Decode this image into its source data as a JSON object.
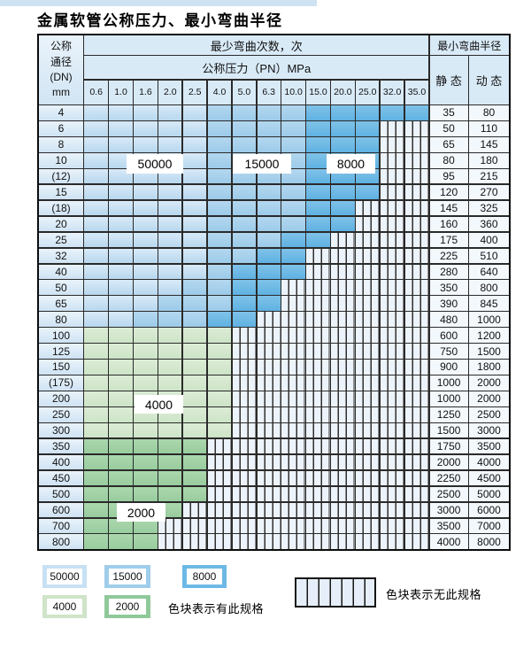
{
  "title": "金属软管公称压力、最小弯曲半径",
  "table": {
    "corner_lines": [
      "公称",
      "通径",
      "(DN)",
      "mm"
    ],
    "bend_cycles_header": "最少弯曲次数，次",
    "pressure_header": "公称压力（PN）MPa",
    "radius_header": "最小弯曲半径",
    "static_header": "静 态",
    "dynamic_header": "动 态",
    "pressures": [
      "0.6",
      "1.0",
      "1.6",
      "2.0",
      "2.5",
      "4.0",
      "5.0",
      "6.3",
      "10.0",
      "15.0",
      "20.0",
      "25.0",
      "32.0",
      "35.0"
    ],
    "band_colors": {
      "b1": {
        "label": "50000",
        "hex": "#b8d7ee"
      },
      "b2": {
        "label": "15000",
        "hex": "#9ccbe9"
      },
      "b3": {
        "label": "8000",
        "hex": "#5fb2e2"
      },
      "g1": {
        "label": "4000",
        "hex": "#cde4c7"
      },
      "g2": {
        "label": "2000",
        "hex": "#98cc9e"
      }
    },
    "rows": [
      {
        "dn": "4",
        "static": "35",
        "dynamic": "80",
        "spec": [
          [
            "b1",
            4
          ],
          [
            "b2",
            8
          ],
          [
            "b3",
            13
          ]
        ]
      },
      {
        "dn": "6",
        "static": "50",
        "dynamic": "110",
        "spec": [
          [
            "b1",
            4
          ],
          [
            "b2",
            8
          ],
          [
            "b3",
            11
          ]
        ]
      },
      {
        "dn": "8",
        "static": "65",
        "dynamic": "145",
        "spec": [
          [
            "b1",
            4
          ],
          [
            "b2",
            8
          ],
          [
            "b3",
            11
          ]
        ]
      },
      {
        "dn": "10",
        "static": "80",
        "dynamic": "180",
        "spec": [
          [
            "b1",
            4
          ],
          [
            "b2",
            8
          ],
          [
            "b3",
            11
          ]
        ]
      },
      {
        "dn": "(12)",
        "static": "95",
        "dynamic": "215",
        "spec": [
          [
            "b1",
            4
          ],
          [
            "b2",
            8
          ],
          [
            "b3",
            11
          ]
        ]
      },
      {
        "dn": "15",
        "static": "120",
        "dynamic": "270",
        "spec": [
          [
            "b1",
            4
          ],
          [
            "b2",
            8
          ],
          [
            "b3",
            11
          ]
        ]
      },
      {
        "dn": "(18)",
        "static": "145",
        "dynamic": "325",
        "spec": [
          [
            "b1",
            4
          ],
          [
            "b2",
            8
          ],
          [
            "b3",
            10
          ]
        ]
      },
      {
        "dn": "20",
        "static": "160",
        "dynamic": "360",
        "spec": [
          [
            "b1",
            4
          ],
          [
            "b2",
            8
          ],
          [
            "b3",
            10
          ]
        ]
      },
      {
        "dn": "25",
        "static": "175",
        "dynamic": "400",
        "spec": [
          [
            "b1",
            4
          ],
          [
            "b2",
            7
          ],
          [
            "b3",
            9
          ]
        ]
      },
      {
        "dn": "32",
        "static": "225",
        "dynamic": "510",
        "spec": [
          [
            "b1",
            4
          ],
          [
            "b2",
            6
          ],
          [
            "b3",
            8
          ]
        ]
      },
      {
        "dn": "40",
        "static": "280",
        "dynamic": "640",
        "spec": [
          [
            "b1",
            4
          ],
          [
            "b2",
            5
          ],
          [
            "b3",
            8
          ]
        ]
      },
      {
        "dn": "50",
        "static": "350",
        "dynamic": "800",
        "spec": [
          [
            "b1",
            3
          ],
          [
            "b2",
            5
          ],
          [
            "b3",
            7
          ]
        ]
      },
      {
        "dn": "65",
        "static": "390",
        "dynamic": "845",
        "spec": [
          [
            "b1",
            2
          ],
          [
            "b2",
            5
          ],
          [
            "b3",
            7
          ]
        ]
      },
      {
        "dn": "80",
        "static": "480",
        "dynamic": "1000",
        "spec": [
          [
            "b1",
            1
          ],
          [
            "b2",
            4
          ],
          [
            "b3",
            6
          ]
        ]
      },
      {
        "dn": "100",
        "static": "600",
        "dynamic": "1200",
        "spec": [
          [
            "g1",
            5
          ]
        ]
      },
      {
        "dn": "125",
        "static": "750",
        "dynamic": "1500",
        "spec": [
          [
            "g1",
            5
          ]
        ]
      },
      {
        "dn": "150",
        "static": "900",
        "dynamic": "1800",
        "spec": [
          [
            "g1",
            5
          ]
        ]
      },
      {
        "dn": "(175)",
        "static": "1000",
        "dynamic": "2000",
        "spec": [
          [
            "g1",
            5
          ]
        ]
      },
      {
        "dn": "200",
        "static": "1000",
        "dynamic": "2000",
        "spec": [
          [
            "g1",
            5
          ]
        ]
      },
      {
        "dn": "250",
        "static": "1250",
        "dynamic": "2500",
        "spec": [
          [
            "g1",
            5
          ]
        ]
      },
      {
        "dn": "300",
        "static": "1500",
        "dynamic": "3000",
        "spec": [
          [
            "g1",
            5
          ]
        ]
      },
      {
        "dn": "350",
        "static": "1750",
        "dynamic": "3500",
        "spec": [
          [
            "g2",
            4
          ]
        ]
      },
      {
        "dn": "400",
        "static": "2000",
        "dynamic": "4000",
        "spec": [
          [
            "g2",
            4
          ]
        ]
      },
      {
        "dn": "450",
        "static": "2250",
        "dynamic": "4500",
        "spec": [
          [
            "g2",
            4
          ]
        ]
      },
      {
        "dn": "500",
        "static": "2500",
        "dynamic": "5000",
        "spec": [
          [
            "g2",
            4
          ]
        ]
      },
      {
        "dn": "600",
        "static": "3000",
        "dynamic": "6000",
        "spec": [
          [
            "g2",
            3
          ]
        ]
      },
      {
        "dn": "700",
        "static": "3500",
        "dynamic": "7000",
        "spec": [
          [
            "g2",
            2
          ]
        ]
      },
      {
        "dn": "800",
        "static": "4000",
        "dynamic": "8000",
        "spec": [
          [
            "g2",
            2
          ]
        ]
      }
    ]
  },
  "cycle_labels": {
    "l50000": "50000",
    "l15000": "15000",
    "l8000": "8000",
    "l4000": "4000",
    "l2000": "2000"
  },
  "legend": {
    "swatches": [
      {
        "label": "50000",
        "type": "b1"
      },
      {
        "label": "15000",
        "type": "b2"
      },
      {
        "label": "8000",
        "type": "b3"
      },
      {
        "label": "4000",
        "type": "g1"
      },
      {
        "label": "2000",
        "type": "g2"
      }
    ],
    "has_spec_text": "色块表示有此规格",
    "no_spec_text": "色块表示无此规格"
  }
}
